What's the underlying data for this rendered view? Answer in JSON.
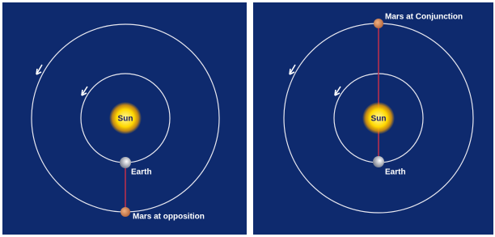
{
  "panels": [
    {
      "sun": "Sun",
      "earth": "Earth",
      "mars": "Mars at opposition"
    },
    {
      "sun": "Sun",
      "earth": "Earth",
      "mars": "Mars at Conjunction"
    }
  ]
}
